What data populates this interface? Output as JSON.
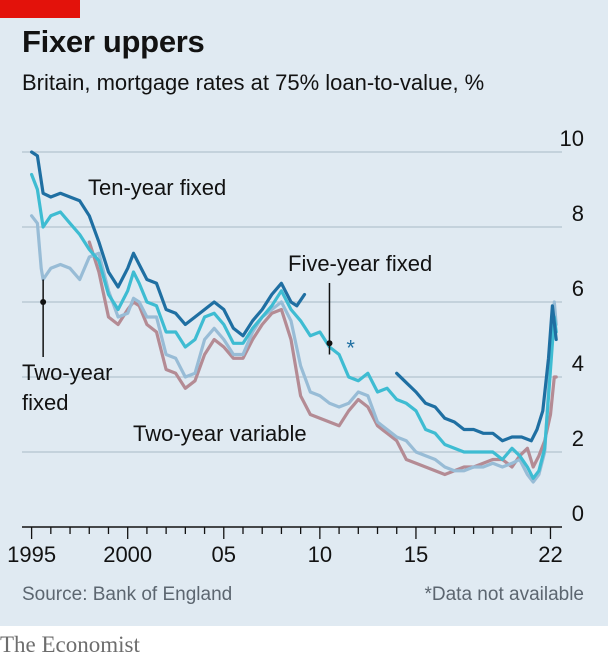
{
  "header": {
    "title": "Fixer uppers",
    "subtitle": "Britain, mortgage rates at 75% loan-to-value, %"
  },
  "footer": {
    "source": "Source: Bank of England",
    "note": "*Data not available",
    "brand": "The Economist"
  },
  "colors": {
    "background": "#e0eaf2",
    "brand_red": "#e3120b",
    "ten_year_fixed": "#1f6fa2",
    "five_year_fixed": "#3ebcd2",
    "two_year_fixed": "#98bcd6",
    "two_year_variable": "#b48b94"
  },
  "chart_data": {
    "type": "line",
    "title": "Fixer uppers",
    "subtitle": "Britain, mortgage rates at 75% loan-to-value, %",
    "x_tick_labels": [
      "1995",
      "2000",
      "05",
      "10",
      "15",
      "22"
    ],
    "x_tick_values": [
      1995,
      2000,
      2005,
      2010,
      2015,
      2022
    ],
    "y_ticks": [
      0,
      2,
      4,
      6,
      8,
      10
    ],
    "ylim": [
      0,
      10
    ],
    "xlim": [
      1994.5,
      2022.6
    ],
    "grid": true,
    "y_axis_side": "right",
    "annotation": "*",
    "annotation_x": 2011.6,
    "annotation_y": 4.9,
    "series": [
      {
        "name": "Ten-year fixed",
        "label": "Ten-year fixed",
        "color": "#1f6fa2",
        "segments": [
          [
            [
              1995.0,
              10.0
            ],
            [
              1995.3,
              9.9
            ],
            [
              1995.6,
              8.9
            ],
            [
              1996.0,
              8.8
            ],
            [
              1996.5,
              8.9
            ],
            [
              1997.0,
              8.8
            ],
            [
              1997.5,
              8.7
            ],
            [
              1998.0,
              8.3
            ],
            [
              1998.5,
              7.6
            ],
            [
              1999.0,
              6.8
            ],
            [
              1999.5,
              6.4
            ],
            [
              2000.0,
              6.9
            ],
            [
              2000.3,
              7.3
            ],
            [
              2000.6,
              7.0
            ],
            [
              2001.0,
              6.6
            ],
            [
              2001.5,
              6.5
            ],
            [
              2002.0,
              5.8
            ],
            [
              2002.5,
              5.7
            ],
            [
              2003.0,
              5.4
            ],
            [
              2003.5,
              5.6
            ],
            [
              2004.0,
              5.8
            ],
            [
              2004.5,
              6.0
            ],
            [
              2005.0,
              5.8
            ],
            [
              2005.5,
              5.3
            ],
            [
              2006.0,
              5.1
            ],
            [
              2006.5,
              5.5
            ],
            [
              2007.0,
              5.8
            ],
            [
              2007.5,
              6.2
            ],
            [
              2008.0,
              6.5
            ],
            [
              2008.5,
              6.0
            ],
            [
              2008.8,
              5.9
            ],
            [
              2009.2,
              6.2
            ]
          ],
          [
            [
              2014.0,
              4.1
            ],
            [
              2014.4,
              3.9
            ],
            [
              2015.0,
              3.6
            ],
            [
              2015.5,
              3.3
            ],
            [
              2016.0,
              3.2
            ],
            [
              2016.5,
              2.9
            ],
            [
              2017.0,
              2.8
            ],
            [
              2017.5,
              2.6
            ],
            [
              2018.0,
              2.6
            ],
            [
              2018.5,
              2.5
            ],
            [
              2019.0,
              2.5
            ],
            [
              2019.5,
              2.3
            ],
            [
              2020.0,
              2.4
            ],
            [
              2020.5,
              2.4
            ],
            [
              2021.0,
              2.3
            ],
            [
              2021.3,
              2.6
            ],
            [
              2021.6,
              3.1
            ],
            [
              2021.9,
              4.5
            ],
            [
              2022.1,
              5.9
            ],
            [
              2022.3,
              5.0
            ]
          ]
        ]
      },
      {
        "name": "Five-year fixed",
        "label": "Five-year fixed",
        "color": "#3ebcd2",
        "segments": [
          [
            [
              1995.0,
              9.4
            ],
            [
              1995.3,
              9.0
            ],
            [
              1995.6,
              8.0
            ],
            [
              1996.0,
              8.3
            ],
            [
              1996.5,
              8.4
            ],
            [
              1997.0,
              8.1
            ],
            [
              1997.5,
              7.8
            ],
            [
              1998.0,
              7.4
            ],
            [
              1998.5,
              7.1
            ],
            [
              1999.0,
              6.2
            ],
            [
              1999.5,
              5.8
            ],
            [
              2000.0,
              6.3
            ],
            [
              2000.3,
              6.8
            ],
            [
              2000.6,
              6.5
            ],
            [
              2001.0,
              6.0
            ],
            [
              2001.5,
              5.9
            ],
            [
              2002.0,
              5.2
            ],
            [
              2002.5,
              5.2
            ],
            [
              2003.0,
              4.8
            ],
            [
              2003.5,
              5.0
            ],
            [
              2004.0,
              5.6
            ],
            [
              2004.5,
              5.7
            ],
            [
              2005.0,
              5.4
            ],
            [
              2005.5,
              4.9
            ],
            [
              2006.0,
              4.9
            ],
            [
              2006.5,
              5.3
            ],
            [
              2007.0,
              5.6
            ],
            [
              2007.5,
              5.9
            ],
            [
              2008.0,
              6.3
            ],
            [
              2008.5,
              5.8
            ],
            [
              2009.0,
              5.5
            ],
            [
              2009.5,
              5.1
            ],
            [
              2010.0,
              5.2
            ],
            [
              2010.5,
              4.8
            ],
            [
              2011.0,
              4.6
            ],
            [
              2011.5,
              4.0
            ],
            [
              2012.0,
              3.9
            ],
            [
              2012.5,
              4.1
            ],
            [
              2013.0,
              3.6
            ],
            [
              2013.5,
              3.7
            ],
            [
              2014.0,
              3.4
            ],
            [
              2014.5,
              3.3
            ],
            [
              2015.0,
              3.1
            ],
            [
              2015.5,
              2.6
            ],
            [
              2016.0,
              2.5
            ],
            [
              2016.5,
              2.2
            ],
            [
              2017.0,
              2.1
            ],
            [
              2017.5,
              2.0
            ],
            [
              2018.0,
              2.0
            ],
            [
              2018.5,
              2.0
            ],
            [
              2019.0,
              2.0
            ],
            [
              2019.5,
              1.8
            ],
            [
              2020.0,
              2.1
            ],
            [
              2020.4,
              1.9
            ],
            [
              2020.8,
              1.6
            ],
            [
              2021.1,
              1.3
            ],
            [
              2021.4,
              1.5
            ],
            [
              2021.7,
              2.1
            ],
            [
              2022.0,
              4.2
            ],
            [
              2022.2,
              5.6
            ],
            [
              2022.3,
              5.2
            ]
          ]
        ]
      },
      {
        "name": "Two-year fixed",
        "label": "Two-year fixed",
        "color": "#98bcd6",
        "segments": [
          [
            [
              1995.0,
              8.3
            ],
            [
              1995.3,
              8.1
            ],
            [
              1995.5,
              6.9
            ],
            [
              1995.6,
              6.6
            ],
            [
              1996.0,
              6.9
            ],
            [
              1996.5,
              7.0
            ],
            [
              1997.0,
              6.9
            ],
            [
              1997.5,
              6.6
            ],
            [
              1998.0,
              7.2
            ],
            [
              1998.5,
              7.3
            ],
            [
              1999.0,
              6.3
            ],
            [
              1999.5,
              5.6
            ],
            [
              2000.0,
              5.7
            ],
            [
              2000.3,
              6.1
            ],
            [
              2000.6,
              6.0
            ],
            [
              2001.0,
              5.6
            ],
            [
              2001.5,
              5.6
            ],
            [
              2002.0,
              4.6
            ],
            [
              2002.5,
              4.5
            ],
            [
              2003.0,
              4.0
            ],
            [
              2003.5,
              4.1
            ],
            [
              2004.0,
              5.0
            ],
            [
              2004.5,
              5.3
            ],
            [
              2005.0,
              5.0
            ],
            [
              2005.5,
              4.6
            ],
            [
              2006.0,
              4.6
            ],
            [
              2006.5,
              5.2
            ],
            [
              2007.0,
              5.6
            ],
            [
              2007.5,
              5.8
            ],
            [
              2008.0,
              6.0
            ],
            [
              2008.5,
              5.5
            ],
            [
              2009.0,
              4.3
            ],
            [
              2009.5,
              3.6
            ],
            [
              2010.0,
              3.5
            ],
            [
              2010.5,
              3.3
            ],
            [
              2011.0,
              3.2
            ],
            [
              2011.5,
              3.3
            ],
            [
              2012.0,
              3.6
            ],
            [
              2012.5,
              3.5
            ],
            [
              2013.0,
              2.8
            ],
            [
              2013.5,
              2.6
            ],
            [
              2014.0,
              2.4
            ],
            [
              2014.5,
              2.3
            ],
            [
              2015.0,
              2.0
            ],
            [
              2015.5,
              1.9
            ],
            [
              2016.0,
              1.8
            ],
            [
              2016.5,
              1.6
            ],
            [
              2017.0,
              1.5
            ],
            [
              2017.5,
              1.5
            ],
            [
              2018.0,
              1.6
            ],
            [
              2018.5,
              1.6
            ],
            [
              2019.0,
              1.7
            ],
            [
              2019.5,
              1.6
            ],
            [
              2020.0,
              1.7
            ],
            [
              2020.4,
              1.8
            ],
            [
              2020.8,
              1.4
            ],
            [
              2021.1,
              1.2
            ],
            [
              2021.4,
              1.4
            ],
            [
              2021.7,
              2.0
            ],
            [
              2022.0,
              4.5
            ],
            [
              2022.2,
              6.0
            ],
            [
              2022.3,
              5.4
            ]
          ]
        ]
      },
      {
        "name": "Two-year variable",
        "label": "Two-year variable",
        "color": "#b48b94",
        "segments": [
          [
            [
              1998.0,
              7.6
            ],
            [
              1998.5,
              6.8
            ],
            [
              1999.0,
              5.6
            ],
            [
              1999.5,
              5.4
            ],
            [
              2000.0,
              5.8
            ],
            [
              2000.3,
              6.0
            ],
            [
              2000.6,
              5.9
            ],
            [
              2001.0,
              5.4
            ],
            [
              2001.5,
              5.2
            ],
            [
              2002.0,
              4.2
            ],
            [
              2002.5,
              4.1
            ],
            [
              2003.0,
              3.7
            ],
            [
              2003.5,
              3.9
            ],
            [
              2004.0,
              4.6
            ],
            [
              2004.5,
              5.0
            ],
            [
              2005.0,
              4.8
            ],
            [
              2005.5,
              4.5
            ],
            [
              2006.0,
              4.5
            ],
            [
              2006.5,
              5.0
            ],
            [
              2007.0,
              5.4
            ],
            [
              2007.5,
              5.7
            ],
            [
              2008.0,
              5.8
            ],
            [
              2008.5,
              5.0
            ],
            [
              2009.0,
              3.5
            ],
            [
              2009.5,
              3.0
            ],
            [
              2010.0,
              2.9
            ],
            [
              2010.5,
              2.8
            ],
            [
              2011.0,
              2.7
            ],
            [
              2011.5,
              3.1
            ],
            [
              2012.0,
              3.4
            ],
            [
              2012.5,
              3.2
            ],
            [
              2013.0,
              2.7
            ],
            [
              2013.5,
              2.5
            ],
            [
              2014.0,
              2.3
            ],
            [
              2014.5,
              1.8
            ],
            [
              2015.0,
              1.7
            ],
            [
              2015.5,
              1.6
            ],
            [
              2016.0,
              1.5
            ],
            [
              2016.5,
              1.4
            ],
            [
              2017.0,
              1.5
            ],
            [
              2017.5,
              1.6
            ],
            [
              2018.0,
              1.6
            ],
            [
              2018.5,
              1.7
            ],
            [
              2019.0,
              1.8
            ],
            [
              2019.5,
              1.8
            ],
            [
              2020.0,
              1.6
            ],
            [
              2020.4,
              1.9
            ],
            [
              2020.8,
              2.1
            ],
            [
              2021.1,
              1.6
            ],
            [
              2021.4,
              1.9
            ],
            [
              2021.7,
              2.3
            ],
            [
              2022.0,
              3.0
            ],
            [
              2022.2,
              4.0
            ],
            [
              2022.3,
              4.0
            ]
          ]
        ]
      }
    ]
  }
}
